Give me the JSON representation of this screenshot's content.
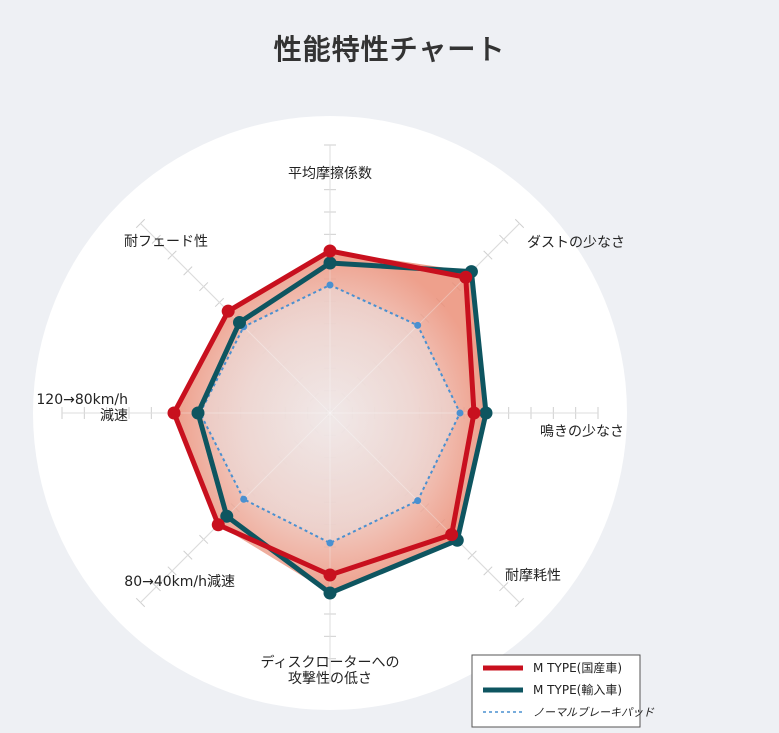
{
  "page": {
    "title": "性能特性チャート"
  },
  "chart_data": {
    "type": "radar",
    "title": "性能特性チャート",
    "axes": [
      {
        "label_lines": [
          "平均摩擦係数"
        ]
      },
      {
        "label_lines": [
          "ダストの少なさ"
        ]
      },
      {
        "label_lines": [
          "鳴きの少なさ"
        ]
      },
      {
        "label_lines": [
          "耐摩耗性"
        ]
      },
      {
        "label_lines": [
          "ディスクローターへの",
          "攻撃性の低さ"
        ]
      },
      {
        "label_lines": [
          "80→40km/h減速"
        ]
      },
      {
        "label_lines": [
          "120→80km/h",
          "減速"
        ]
      },
      {
        "label_lines": [
          "耐フェード性"
        ]
      }
    ],
    "scale_max": 10,
    "ticks": 9,
    "series": [
      {
        "name": "M TYPE(国産車)",
        "color": "#c8101e",
        "values": [
          8.1,
          9.6,
          7.2,
          8.6,
          8.1,
          7.9,
          7.8,
          7.2
        ]
      },
      {
        "name": "M TYPE(輸入車)",
        "color": "#0e5560",
        "values": [
          7.5,
          10.0,
          7.8,
          9.0,
          9.0,
          7.3,
          6.6,
          6.4
        ]
      },
      {
        "name": "ノーマルブレーキパッド",
        "color": "#4a90d0",
        "values": [
          6.4,
          6.2,
          6.5,
          6.2,
          6.5,
          6.1,
          6.5,
          6.1
        ]
      }
    ],
    "legend_position": "bottom-right",
    "grid": true
  }
}
